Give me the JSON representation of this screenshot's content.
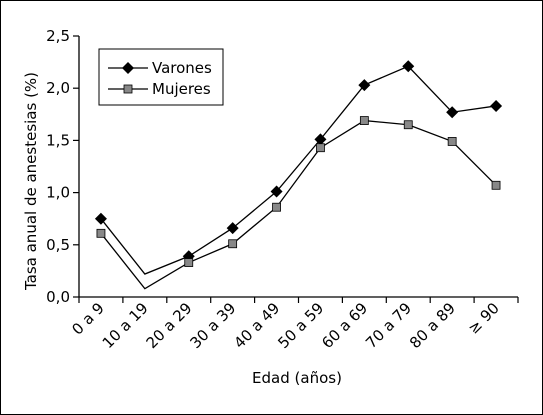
{
  "chart_data": {
    "type": "line",
    "xlabel": "Edad (años)",
    "ylabel": "Tasa anual de anestesias (%)",
    "categories": [
      "0 a 9",
      "10 a 19",
      "20 a 29",
      "30 a 39",
      "40 a 49",
      "50 a 59",
      "60 a 69",
      "70 a 79",
      "80 a 89",
      "≥ 90"
    ],
    "ylim": [
      0,
      2.5
    ],
    "yticks": [
      "0,0",
      "0,5",
      "1,0",
      "1,5",
      "2,0",
      "2,5"
    ],
    "grid": false,
    "legend_position": "top-left",
    "series": [
      {
        "name": "Varones",
        "marker": "diamond",
        "color": "#000000",
        "values": [
          0.75,
          0.22,
          0.39,
          0.66,
          1.01,
          1.51,
          2.03,
          2.21,
          1.77,
          1.83
        ]
      },
      {
        "name": "Mujeres",
        "marker": "square",
        "color": "#888888",
        "values": [
          0.61,
          0.08,
          0.33,
          0.51,
          0.86,
          1.43,
          1.69,
          1.65,
          1.49,
          1.07
        ]
      }
    ],
    "unmarked_categories": [
      "10 a 19"
    ]
  }
}
